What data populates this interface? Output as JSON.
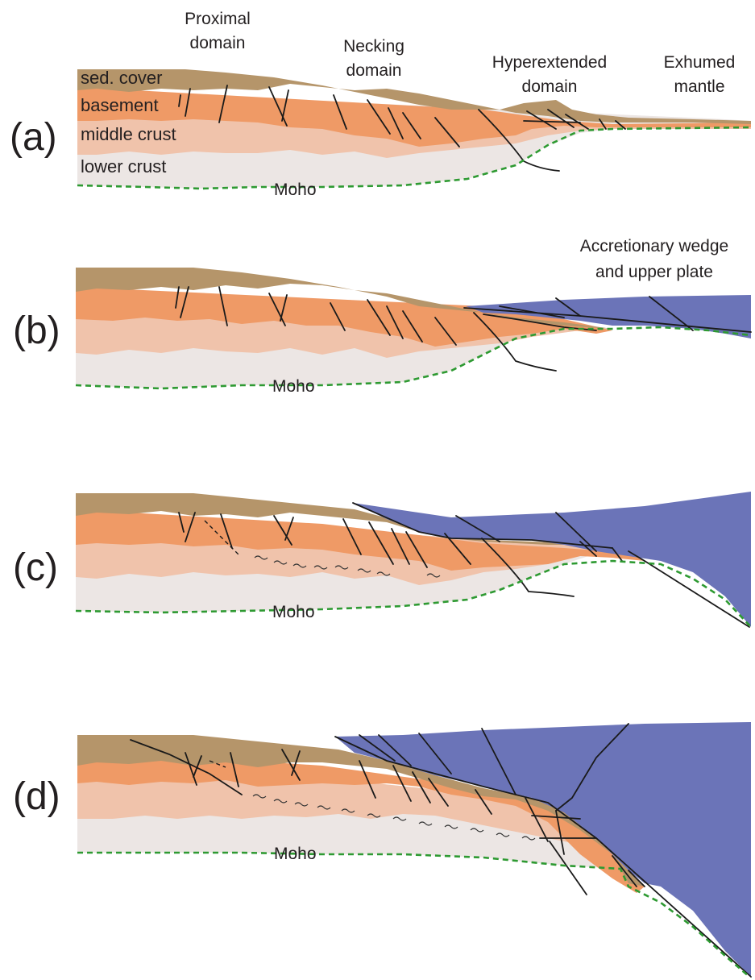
{
  "domains": {
    "proximal": [
      "Proximal",
      "domain"
    ],
    "necking": [
      "Necking",
      "domain"
    ],
    "hyperextended": [
      "Hyperextended",
      "domain"
    ],
    "exhumed": [
      "Exhumed",
      "mantle"
    ]
  },
  "layers": {
    "sed_cover": "sed. cover",
    "basement": "basement",
    "middle_crust": "middle crust",
    "lower_crust": "lower crust"
  },
  "accretionary": [
    "Accretionary wedge",
    "and upper plate"
  ],
  "panels": {
    "a": "(a)",
    "b": "(b)",
    "c": "(c)",
    "d": "(d)"
  },
  "moho_label": "Moho",
  "colors": {
    "sed_cover": "#b5956a",
    "basement": "#ef9a66",
    "middle_crust": "#f0c3ab",
    "lower_crust": "#ece6e4",
    "upper_plate": "#6b74b8",
    "moho_line": "#2e9a32"
  }
}
